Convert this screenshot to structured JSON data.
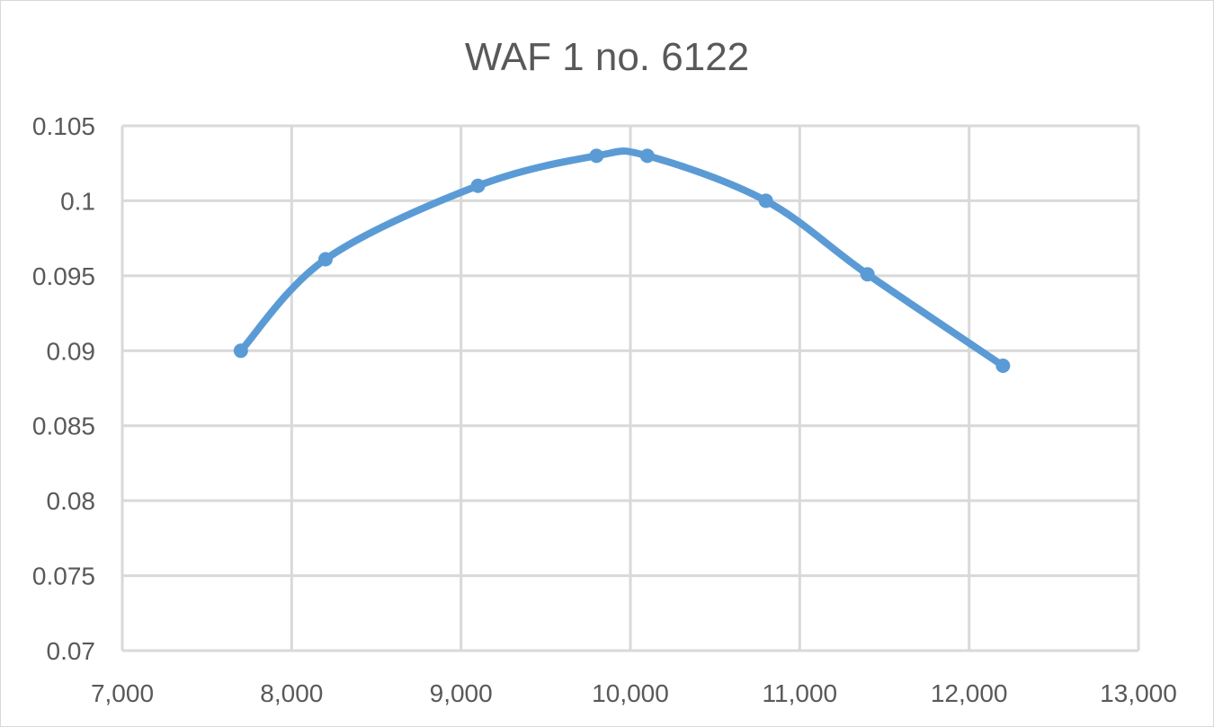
{
  "chart_data": {
    "type": "line",
    "title": "WAF 1 no. 6122",
    "xlabel": "",
    "ylabel": "",
    "xlim": [
      7000,
      13000
    ],
    "ylim": [
      0.07,
      0.105
    ],
    "x_ticks": [
      7000,
      8000,
      9000,
      10000,
      11000,
      12000,
      13000
    ],
    "x_tick_labels": [
      "7,000",
      "8,000",
      "9,000",
      "10,000",
      "11,000",
      "12,000",
      "13,000"
    ],
    "y_ticks": [
      0.07,
      0.075,
      0.08,
      0.085,
      0.09,
      0.095,
      0.1,
      0.105
    ],
    "y_tick_labels": [
      "0.07",
      "0.075",
      "0.08",
      "0.085",
      "0.09",
      "0.095",
      "0.1",
      "0.105"
    ],
    "grid": true,
    "smooth": true,
    "series": [
      {
        "x": [
          7700,
          8200,
          9100,
          9800,
          10100,
          10800,
          11400,
          12200
        ],
        "y": [
          0.09,
          0.0961,
          0.101,
          0.103,
          0.103,
          0.1,
          0.0951,
          0.089
        ]
      }
    ],
    "colors": {
      "series": "#5b9bd5",
      "grid": "#d9d9d9",
      "text": "#595959"
    }
  }
}
